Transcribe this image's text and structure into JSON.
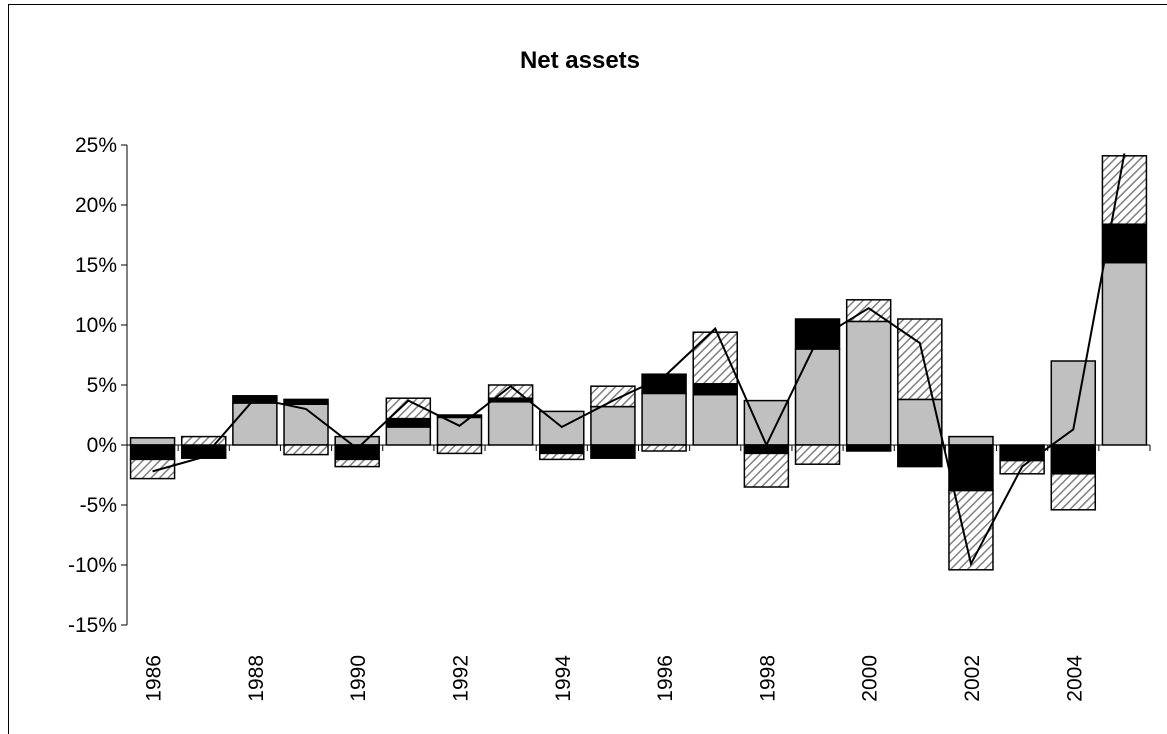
{
  "chart_data": {
    "type": "bar",
    "title": "Net assets",
    "categories": [
      "1986",
      null,
      "1988",
      null,
      "1990",
      null,
      "1992",
      null,
      "1994",
      null,
      "1996",
      null,
      "1998",
      null,
      "2000",
      null,
      "2002",
      null,
      "2004",
      null
    ],
    "series": [
      {
        "color": "#c0c0c0",
        "values": [
          0.6,
          0,
          3.5,
          3.4,
          0.7,
          1.5,
          2.3,
          3.6,
          2.8,
          3.2,
          4.3,
          4.2,
          3.7,
          8.0,
          10.3,
          3.8,
          0.7,
          0,
          7.0,
          15.2
        ]
      },
      {
        "color": "#000000",
        "values": [
          -1.2,
          -1.1,
          0.6,
          0.4,
          -1.2,
          0.7,
          0.2,
          0.3,
          -0.7,
          -1.1,
          1.6,
          0.9,
          -0.7,
          2.5,
          -0.5,
          -1.8,
          -3.8,
          -1.3,
          -2.4,
          3.2
        ]
      },
      {
        "color": "#808080",
        "fill": "hatch",
        "values": [
          -1.6,
          0.7,
          0,
          -0.8,
          -0.6,
          1.7,
          -0.7,
          1.1,
          -0.5,
          1.7,
          -0.5,
          4.3,
          -2.8,
          -1.6,
          1.8,
          6.7,
          -6.6,
          -1.1,
          -3.0,
          5.7
        ]
      },
      {
        "type": "line",
        "color": "#000000",
        "values": [
          -2.2,
          -1.0,
          3.9,
          3.0,
          -0.3,
          3.7,
          1.6,
          4.9,
          1.5,
          3.7,
          5.7,
          9.7,
          0,
          8.8,
          11.4,
          8.5,
          -9.9,
          -1.8,
          1.3,
          24.3
        ]
      }
    ],
    "ylim": [
      -15,
      25
    ],
    "yticks": [
      {
        "value": -15,
        "label": "-15%"
      },
      {
        "value": -10,
        "label": "-10%"
      },
      {
        "value": -5,
        "label": "-5%"
      },
      {
        "value": 0,
        "label": "0%"
      },
      {
        "value": 5,
        "label": "5%"
      },
      {
        "value": 10,
        "label": "10%"
      },
      {
        "value": 15,
        "label": "15%"
      },
      {
        "value": 20,
        "label": "20%"
      },
      {
        "value": 25,
        "label": "25%"
      }
    ],
    "grid": false
  }
}
